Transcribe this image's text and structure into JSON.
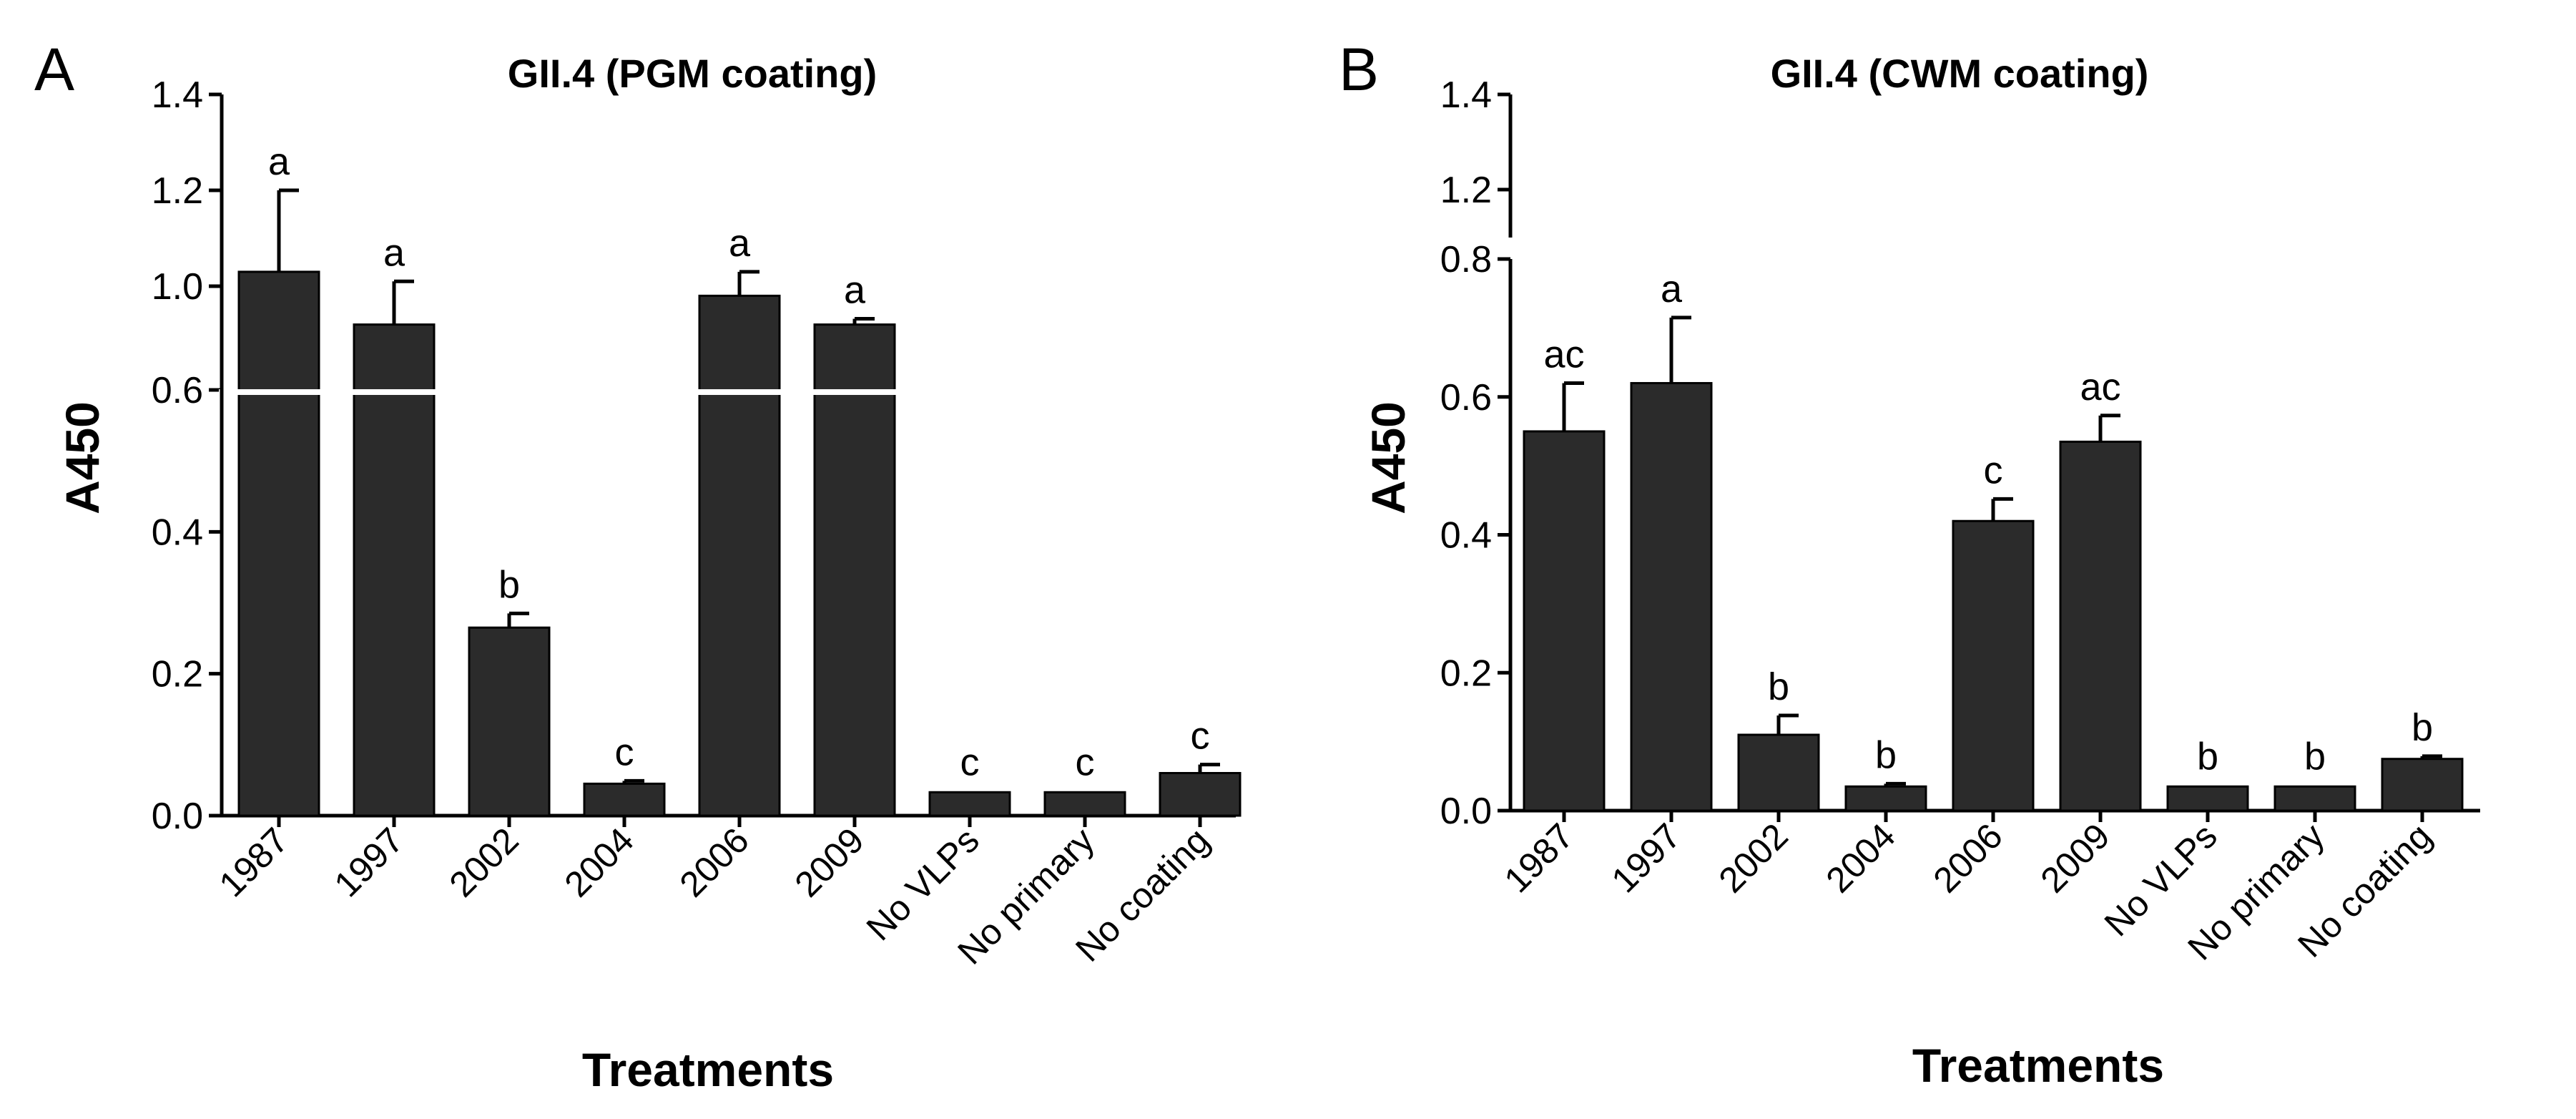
{
  "figure": {
    "panels": [
      "A",
      "B"
    ]
  },
  "chart_data": [
    {
      "panel": "A",
      "type": "bar",
      "title": "GII.4 (PGM coating)",
      "xlabel": "Treatments",
      "ylabel": "A450",
      "categories": [
        "1987",
        "1997",
        "2002",
        "2004",
        "2006",
        "2009",
        "No VLPs",
        "No primary",
        "No coating"
      ],
      "values": [
        1.03,
        0.92,
        0.265,
        0.045,
        0.98,
        0.92,
        0.033,
        0.033,
        0.06
      ],
      "errors": [
        0.17,
        0.09,
        0.02,
        0.004,
        0.05,
        0.012,
        0.002,
        0.002,
        0.012
      ],
      "significance": [
        "a",
        "a",
        "b",
        "c",
        "a",
        "a",
        "c",
        "c",
        "c"
      ],
      "axis_break": {
        "lower_max": 0.6,
        "upper_min": 0.8
      },
      "lower_ticks": [
        "0.0",
        "0.2",
        "0.4",
        "0.6"
      ],
      "upper_ticks": [
        "1.0",
        "1.2",
        "1.4"
      ],
      "lower_tick_values": [
        0.0,
        0.2,
        0.4,
        0.6
      ],
      "upper_tick_values": [
        1.0,
        1.2,
        1.4
      ],
      "ylim": [
        0,
        1.4
      ]
    },
    {
      "panel": "B",
      "type": "bar",
      "title": "GII.4 (CWM coating)",
      "xlabel": "Treatments",
      "ylabel": "A450",
      "categories": [
        "1987",
        "1997",
        "2002",
        "2004",
        "2006",
        "2009",
        "No VLPs",
        "No primary",
        "No coating"
      ],
      "values": [
        0.55,
        0.62,
        0.11,
        0.035,
        0.42,
        0.535,
        0.035,
        0.035,
        0.075
      ],
      "errors": [
        0.07,
        0.095,
        0.028,
        0.004,
        0.032,
        0.038,
        0.002,
        0.002,
        0.004
      ],
      "significance": [
        "ac",
        "a",
        "b",
        "b",
        "c",
        "ac",
        "b",
        "b",
        "b"
      ],
      "axis_break": {
        "lower_max": 0.8,
        "upper_min": 1.1
      },
      "lower_ticks": [
        "0.0",
        "0.2",
        "0.4",
        "0.6",
        "0.8"
      ],
      "upper_ticks": [
        "1.2",
        "1.4"
      ],
      "lower_tick_values": [
        0.0,
        0.2,
        0.4,
        0.6,
        0.8
      ],
      "upper_tick_values": [
        1.2,
        1.4
      ],
      "ylim": [
        0,
        1.4
      ]
    }
  ]
}
